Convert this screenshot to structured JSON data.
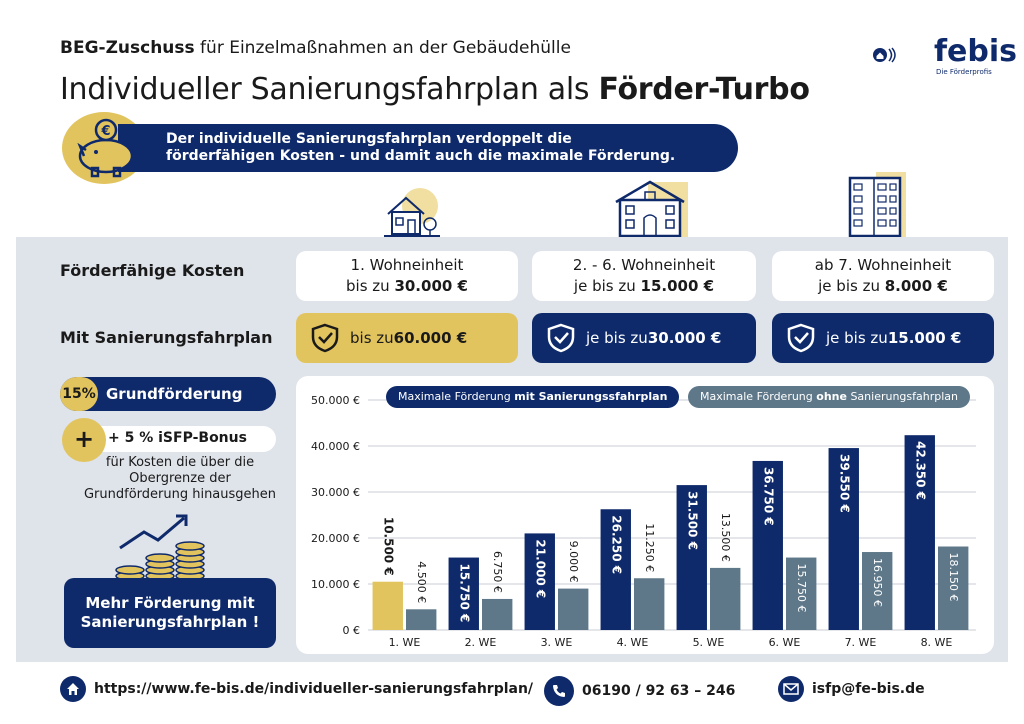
{
  "header": {
    "sub_bold": "BEG-Zuschuss",
    "sub_rest": " für Einzelmaßnahmen an der Gebäudehülle",
    "title_plain": "Individueller Sanierungsfahrplan als ",
    "title_bold": "Förder-Turbo"
  },
  "logo": {
    "name": "febis",
    "tagline": "Die Förderprofis"
  },
  "banner": {
    "line1": "Der individuelle Sanierungsfahrplan verdoppelt die",
    "line2": "förderfähigen Kosten - und damit auch die maximale Förderung."
  },
  "rows": {
    "cost_label": "Förderfähige Kosten",
    "sfp_label": "Mit Sanierungsfahrplan"
  },
  "cost_boxes": [
    {
      "line1": "1. Wohneinheit",
      "pre": "bis zu ",
      "amount": "30.000 €"
    },
    {
      "line1": "2. - 6. Wohneinheit",
      "pre": "je bis zu ",
      "amount": "15.000 €"
    },
    {
      "line1": "ab 7. Wohneinheit",
      "pre": "je bis zu ",
      "amount": "8.000 €"
    }
  ],
  "sfp_boxes": [
    {
      "pre": "bis zu ",
      "amount": "60.000 €"
    },
    {
      "pre": "je bis zu ",
      "amount": "30.000 €"
    },
    {
      "pre": "je bis zu ",
      "amount": "15.000 €"
    }
  ],
  "left_panel": {
    "pct": "15%",
    "grund": "Grundförderung",
    "plus": "+",
    "bonus": "+ 5 % iSFP-Bonus",
    "bonus_text": "für Kosten die über die Obergrenze der Grundförderung hinausgehen",
    "more_line1": "Mehr Förderung mit",
    "more_line2": "Sanierungsfahrplan !"
  },
  "legend": {
    "with_pre": "Maximale Förderung ",
    "with_bold": "mit Sanierungssfahrplan",
    "without_pre": "Maximale Förderung ",
    "without_bold": "ohne",
    "without_post": " Sanierungsfahrplan"
  },
  "chart_data": {
    "type": "bar",
    "categories": [
      "1. WE",
      "2. WE",
      "3. WE",
      "4. WE",
      "5. WE",
      "6. WE",
      "7. WE",
      "8. WE"
    ],
    "series": [
      {
        "name": "Maximale Förderung mit Sanierungssfahrplan",
        "values": [
          10500,
          15750,
          21000,
          26250,
          31500,
          36750,
          39550,
          42350
        ],
        "labels": [
          "10.500 €",
          "15.750 €",
          "21.000 €",
          "26.250 €",
          "31.500 €",
          "36.750 €",
          "39.550 €",
          "42.350 €"
        ]
      },
      {
        "name": "Maximale Förderung ohne Sanierungsfahrplan",
        "values": [
          4500,
          6750,
          9000,
          11250,
          13500,
          15750,
          16950,
          18150
        ],
        "labels": [
          "4.500 €",
          "6.750 €",
          "9.000 €",
          "11.250 €",
          "13.500 €",
          "15.750 €",
          "16.950 €",
          "18.150 €"
        ]
      }
    ],
    "yticks": [
      "0 €",
      "10.000 €",
      "20.000 €",
      "30.000 €",
      "40.000 €",
      "50.000 €"
    ],
    "ylim": [
      0,
      50000
    ],
    "grid": true,
    "colors": {
      "with": "#0f2a6b",
      "with_first": "#e2c45e",
      "without": "#5e7889"
    }
  },
  "footer": {
    "url": "https://www.fe-bis.de/individueller-sanierungsfahrplan/",
    "phone": "06190 / 92 63 – 246",
    "email": "isfp@fe-bis.de"
  }
}
